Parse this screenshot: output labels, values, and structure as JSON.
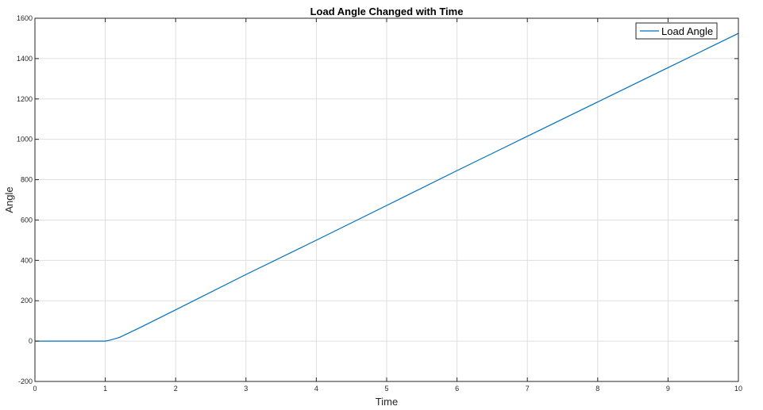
{
  "chart_data": {
    "type": "line",
    "title": "Load Angle Changed with Time",
    "xlabel": "Time",
    "ylabel": "Angle",
    "xlim": [
      0,
      10
    ],
    "ylim": [
      -200,
      1600
    ],
    "xticks": [
      0,
      1,
      2,
      3,
      4,
      5,
      6,
      7,
      8,
      9,
      10
    ],
    "yticks": [
      -200,
      0,
      200,
      400,
      600,
      800,
      1000,
      1200,
      1400,
      1600
    ],
    "grid": true,
    "legend_position": "top-right",
    "series": [
      {
        "name": "Load Angle",
        "color": "#0072BD",
        "x": [
          0,
          0.5,
          1.0,
          1.05,
          1.1,
          1.2,
          1.5,
          2,
          3,
          4,
          5,
          6,
          7,
          8,
          9,
          10
        ],
        "y": [
          0,
          0,
          0,
          3,
          8,
          18,
          68,
          155,
          330,
          500,
          672,
          845,
          1015,
          1185,
          1355,
          1525
        ]
      }
    ]
  }
}
